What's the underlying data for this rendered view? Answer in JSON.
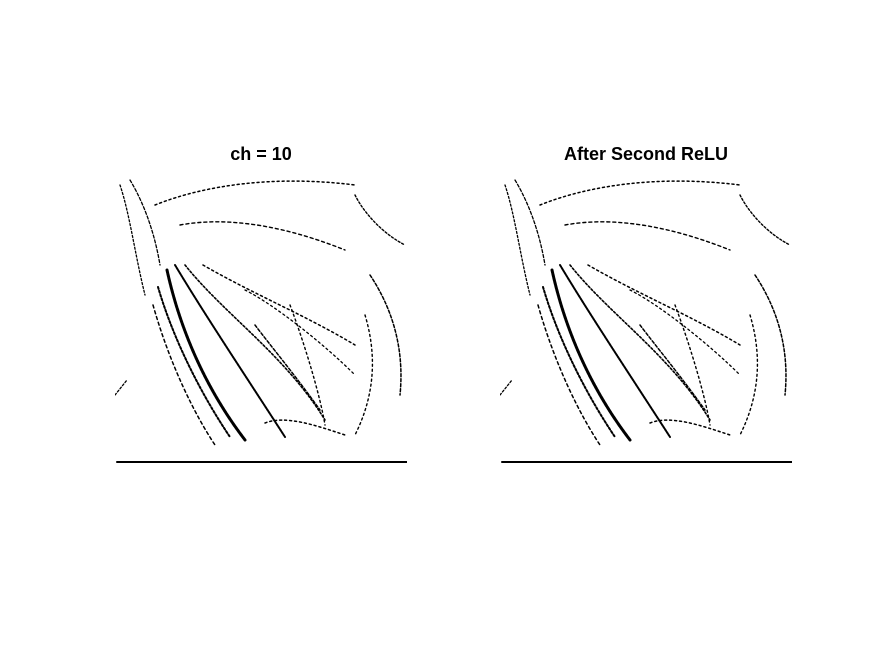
{
  "figure": {
    "panels": [
      {
        "title": "ch = 10"
      },
      {
        "title": "After Second ReLU"
      }
    ]
  }
}
